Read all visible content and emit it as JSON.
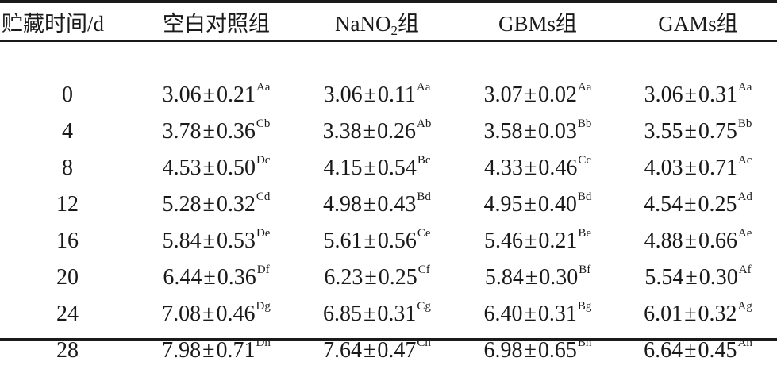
{
  "table": {
    "headers": {
      "time": "贮藏时间/d",
      "blank": "空白对照组",
      "nano2_pre": "NaNO",
      "nano2_sub": "2",
      "nano2_post": "组",
      "gbms": "GBMs组",
      "gams": "GAMs组"
    },
    "pm_symbol": "±",
    "rows": [
      {
        "time": "0",
        "cells": [
          {
            "mean": "3.06",
            "sd": "0.21",
            "letters": "Aa"
          },
          {
            "mean": "3.06",
            "sd": "0.11",
            "letters": "Aa"
          },
          {
            "mean": "3.07",
            "sd": "0.02",
            "letters": "Aa"
          },
          {
            "mean": "3.06",
            "sd": "0.31",
            "letters": "Aa"
          }
        ]
      },
      {
        "time": "4",
        "cells": [
          {
            "mean": "3.78",
            "sd": "0.36",
            "letters": "Cb"
          },
          {
            "mean": "3.38",
            "sd": "0.26",
            "letters": "Ab"
          },
          {
            "mean": "3.58",
            "sd": "0.03",
            "letters": "Bb"
          },
          {
            "mean": "3.55",
            "sd": "0.75",
            "letters": "Bb"
          }
        ]
      },
      {
        "time": "8",
        "cells": [
          {
            "mean": "4.53",
            "sd": "0.50",
            "letters": "Dc"
          },
          {
            "mean": "4.15",
            "sd": "0.54",
            "letters": "Bc"
          },
          {
            "mean": "4.33",
            "sd": "0.46",
            "letters": "Cc"
          },
          {
            "mean": "4.03",
            "sd": "0.71",
            "letters": "Ac"
          }
        ]
      },
      {
        "time": "12",
        "cells": [
          {
            "mean": "5.28",
            "sd": "0.32",
            "letters": "Cd"
          },
          {
            "mean": "4.98",
            "sd": "0.43",
            "letters": "Bd"
          },
          {
            "mean": "4.95",
            "sd": "0.40",
            "letters": "Bd"
          },
          {
            "mean": "4.54",
            "sd": "0.25",
            "letters": "Ad"
          }
        ]
      },
      {
        "time": "16",
        "cells": [
          {
            "mean": "5.84",
            "sd": "0.53",
            "letters": "De"
          },
          {
            "mean": "5.61",
            "sd": "0.56",
            "letters": "Ce"
          },
          {
            "mean": "5.46",
            "sd": "0.21",
            "letters": "Be"
          },
          {
            "mean": "4.88",
            "sd": "0.66",
            "letters": "Ae"
          }
        ]
      },
      {
        "time": "20",
        "cells": [
          {
            "mean": "6.44",
            "sd": "0.36",
            "letters": "Df"
          },
          {
            "mean": "6.23",
            "sd": "0.25",
            "letters": "Cf"
          },
          {
            "mean": "5.84",
            "sd": "0.30",
            "letters": "Bf"
          },
          {
            "mean": "5.54",
            "sd": "0.30",
            "letters": "Af"
          }
        ]
      },
      {
        "time": "24",
        "cells": [
          {
            "mean": "7.08",
            "sd": "0.46",
            "letters": "Dg"
          },
          {
            "mean": "6.85",
            "sd": "0.31",
            "letters": "Cg"
          },
          {
            "mean": "6.40",
            "sd": "0.31",
            "letters": "Bg"
          },
          {
            "mean": "6.01",
            "sd": "0.32",
            "letters": "Ag"
          }
        ]
      },
      {
        "time": "28",
        "cells": [
          {
            "mean": "7.98",
            "sd": "0.71",
            "letters": "Dh"
          },
          {
            "mean": "7.64",
            "sd": "0.47",
            "letters": "Ch"
          },
          {
            "mean": "6.98",
            "sd": "0.65",
            "letters": "Bh"
          },
          {
            "mean": "6.64",
            "sd": "0.45",
            "letters": "Ah"
          }
        ]
      }
    ]
  }
}
